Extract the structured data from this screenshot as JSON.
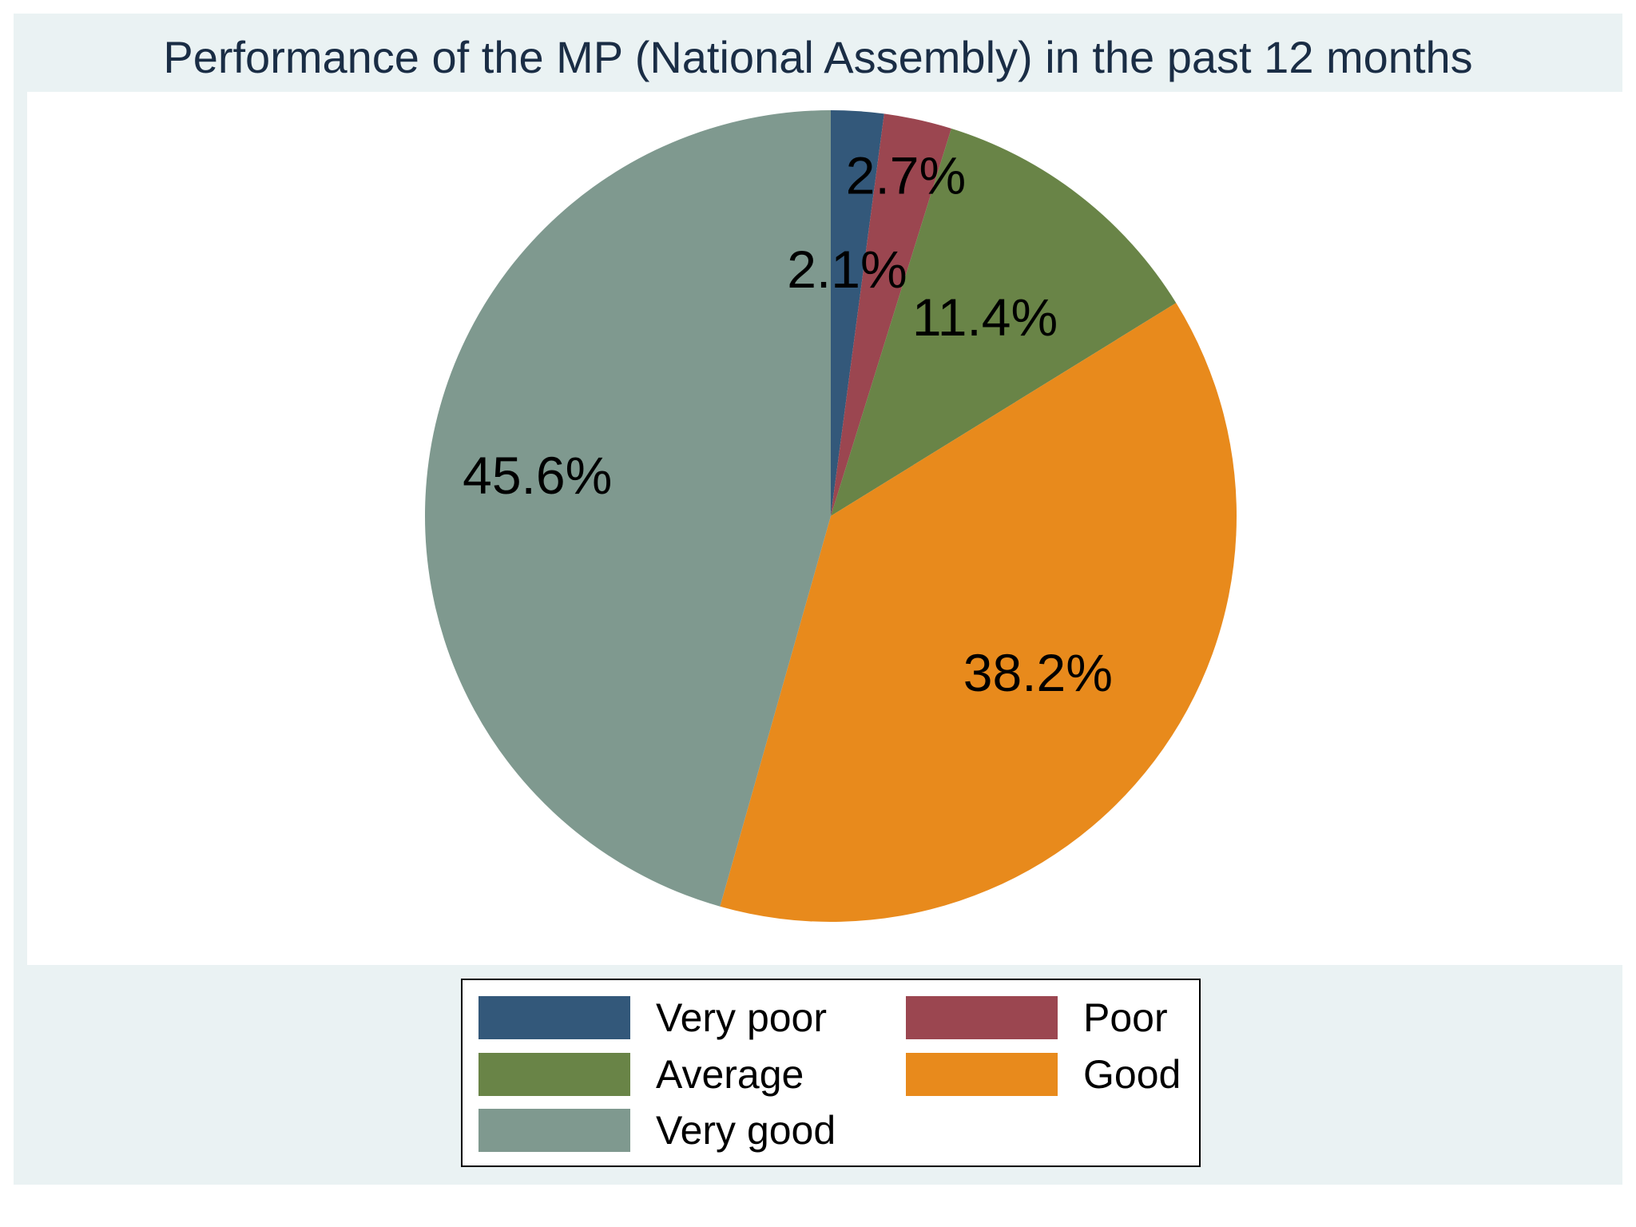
{
  "chart_data": {
    "type": "pie",
    "title": "Performance of the MP (National Assembly) in the past 12 months",
    "legend_position": "bottom",
    "slices": [
      {
        "name": "Very poor",
        "value": 2.1,
        "label": "2.1%",
        "color": "#33587a"
      },
      {
        "name": "Poor",
        "value": 2.7,
        "label": "2.7%",
        "color": "#9b4650"
      },
      {
        "name": "Average",
        "value": 11.4,
        "label": "11.4%",
        "color": "#698447"
      },
      {
        "name": "Good",
        "value": 38.2,
        "label": "38.2%",
        "color": "#e88a1c"
      },
      {
        "name": "Very good",
        "value": 45.6,
        "label": "45.6%",
        "color": "#7f998f"
      }
    ]
  },
  "colors": {
    "background": "#eaf2f3",
    "plot_background": "#ffffff",
    "title_text": "#1a2d45"
  }
}
